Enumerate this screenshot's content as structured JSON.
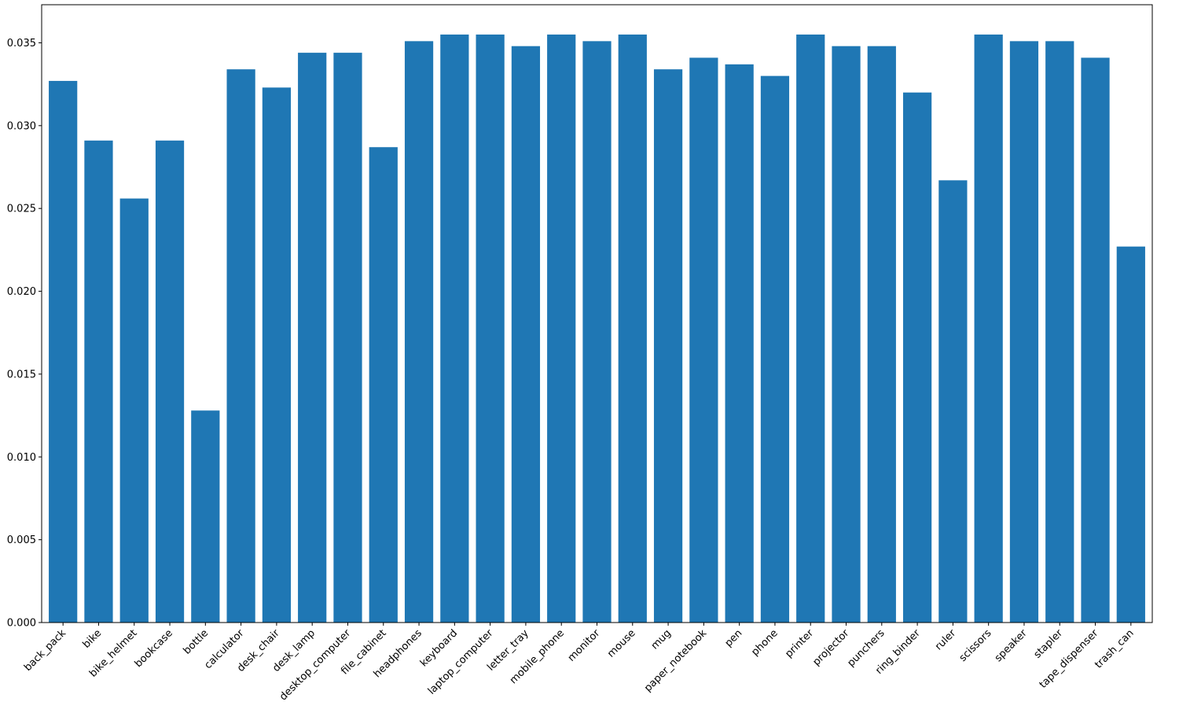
{
  "colors": {
    "bar": "#1f77b4",
    "axis": "#000000",
    "background": "#ffffff"
  },
  "chart_data": {
    "type": "bar",
    "title": "",
    "xlabel": "",
    "ylabel": "",
    "categories": [
      "back_pack",
      "bike",
      "bike_helmet",
      "bookcase",
      "bottle",
      "calculator",
      "desk_chair",
      "desk_lamp",
      "desktop_computer",
      "file_cabinet",
      "headphones",
      "keyboard",
      "laptop_computer",
      "letter_tray",
      "mobile_phone",
      "monitor",
      "mouse",
      "mug",
      "paper_notebook",
      "pen",
      "phone",
      "printer",
      "projector",
      "punchers",
      "ring_binder",
      "ruler",
      "scissors",
      "speaker",
      "stapler",
      "tape_dispenser",
      "trash_can"
    ],
    "values": [
      0.0327,
      0.0291,
      0.0256,
      0.0291,
      0.0128,
      0.0334,
      0.0323,
      0.0344,
      0.0344,
      0.0287,
      0.0351,
      0.0355,
      0.0355,
      0.0348,
      0.0355,
      0.0351,
      0.0355,
      0.0334,
      0.0341,
      0.0337,
      0.033,
      0.0355,
      0.0348,
      0.0348,
      0.032,
      0.0267,
      0.0355,
      0.0351,
      0.0351,
      0.0341,
      0.0227
    ],
    "ylim": [
      0,
      0.0373
    ],
    "yticks": [
      0.0,
      0.005,
      0.01,
      0.015,
      0.02,
      0.025,
      0.03,
      0.035
    ],
    "ytick_labels": [
      "0.000",
      "0.005",
      "0.010",
      "0.015",
      "0.020",
      "0.025",
      "0.030",
      "0.035"
    ],
    "grid": false,
    "xtick_rotation": 45
  }
}
